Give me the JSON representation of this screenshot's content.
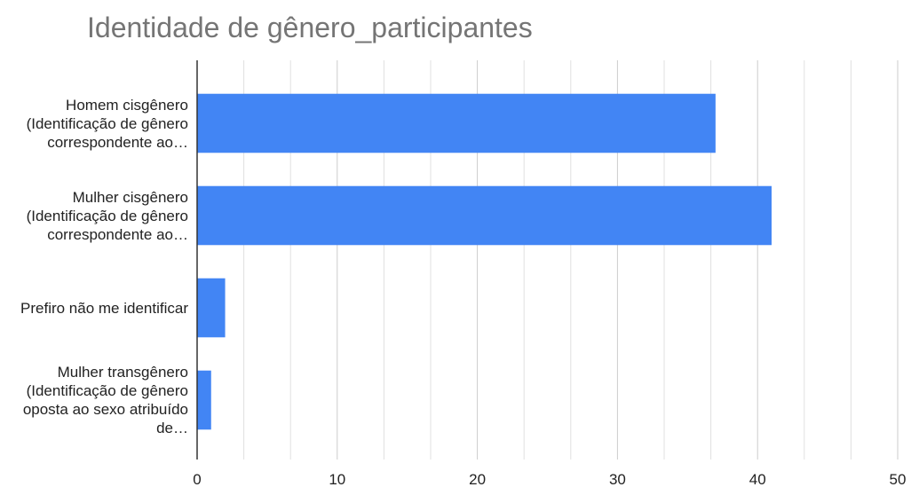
{
  "chart_data": {
    "type": "bar",
    "orientation": "horizontal",
    "title": "Identidade de gênero_participantes",
    "categories": [
      "Homem cisgênero (Identificação de gênero correspondente ao…",
      "Mulher cisgênero (Identificação de gênero correspondente ao…",
      "Prefiro não me identificar",
      "Mulher transgênero (Identificação de gênero oposta ao sexo atribuído de…"
    ],
    "values": [
      37,
      41,
      2,
      1
    ],
    "color": "#4285f4",
    "xlim": [
      0,
      50
    ],
    "xticks": [
      0,
      10,
      20,
      30,
      40,
      50
    ],
    "grid": true
  }
}
